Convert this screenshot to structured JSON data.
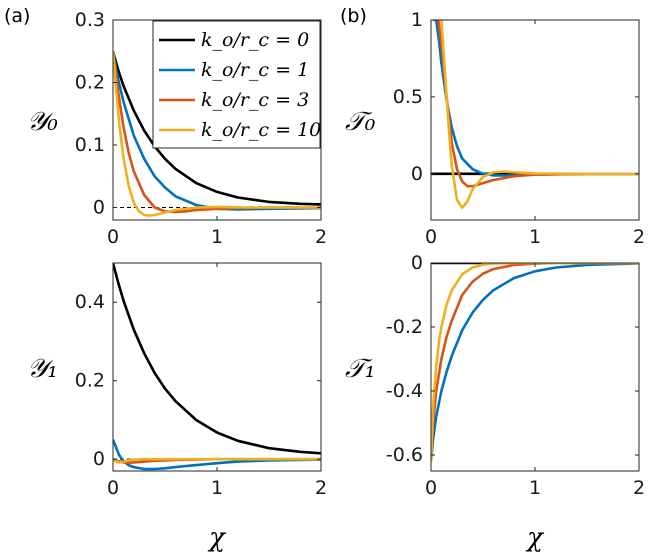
{
  "panel_labels": [
    "(a)",
    "(b)"
  ],
  "legend": {
    "entries": [
      {
        "label": "k_o/r_c = 0",
        "color": "#000000"
      },
      {
        "label": "k_o/r_c = 1",
        "color": "#0072BD"
      },
      {
        "label": "k_o/r_c = 3",
        "color": "#D95319"
      },
      {
        "label": "k_o/r_c = 10",
        "color": "#EDB120"
      }
    ]
  },
  "chart_data": [
    {
      "type": "line",
      "panel": "(a)",
      "ylabel": "𝒴₀",
      "xlabel": "",
      "xlim": [
        0,
        2
      ],
      "ylim": [
        -0.02,
        0.3
      ],
      "xticks": [
        "0",
        "1",
        "2"
      ],
      "yticks": [
        "0",
        "0.1",
        "0.2",
        "0.3"
      ],
      "reference_line": {
        "y": 0,
        "style": "dashed"
      },
      "series": [
        {
          "name": "k_o/r_c = 0",
          "color": "#000000",
          "x": [
            0,
            0.05,
            0.1,
            0.2,
            0.3,
            0.4,
            0.5,
            0.6,
            0.8,
            1.0,
            1.2,
            1.5,
            1.8,
            2.0
          ],
          "y": [
            0.25,
            0.22,
            0.195,
            0.155,
            0.123,
            0.098,
            0.078,
            0.062,
            0.039,
            0.025,
            0.016,
            0.009,
            0.006,
            0.005
          ]
        },
        {
          "name": "k_o/r_c = 1",
          "color": "#0072BD",
          "x": [
            0,
            0.05,
            0.1,
            0.2,
            0.3,
            0.4,
            0.5,
            0.6,
            0.8,
            1.0,
            1.2,
            1.5,
            2.0
          ],
          "y": [
            0.25,
            0.205,
            0.17,
            0.115,
            0.078,
            0.05,
            0.032,
            0.018,
            0.004,
            -0.002,
            -0.003,
            -0.002,
            -0.001
          ]
        },
        {
          "name": "k_o/r_c = 3",
          "color": "#D95319",
          "x": [
            0,
            0.05,
            0.1,
            0.15,
            0.2,
            0.3,
            0.4,
            0.5,
            0.6,
            0.7,
            0.8,
            1.0,
            1.2,
            1.5,
            2.0
          ],
          "y": [
            0.25,
            0.185,
            0.13,
            0.088,
            0.058,
            0.02,
            0.0,
            -0.006,
            -0.007,
            -0.006,
            -0.004,
            -0.002,
            -0.001,
            0.0,
            0.0
          ]
        },
        {
          "name": "k_o/r_c = 10",
          "color": "#EDB120",
          "x": [
            0,
            0.03,
            0.06,
            0.1,
            0.15,
            0.2,
            0.25,
            0.3,
            0.35,
            0.4,
            0.5,
            0.6,
            0.8,
            1.0,
            1.3,
            2.0
          ],
          "y": [
            0.25,
            0.19,
            0.135,
            0.08,
            0.035,
            0.008,
            -0.006,
            -0.012,
            -0.013,
            -0.012,
            -0.008,
            -0.004,
            0.0,
            0.001,
            0.0,
            0.0
          ]
        }
      ]
    },
    {
      "type": "line",
      "panel": "(b)",
      "ylabel": "𝒯₀",
      "xlabel": "",
      "xlim": [
        0,
        2
      ],
      "ylim": [
        -0.3,
        1
      ],
      "xticks": [
        "0",
        "1",
        "2"
      ],
      "yticks": [
        "0",
        "0.5",
        "1"
      ],
      "series": [
        {
          "name": "k_o/r_c = 0",
          "color": "#000000",
          "x": [
            0,
            2.0
          ],
          "y": [
            0,
            0
          ]
        },
        {
          "name": "k_o/r_c = 1",
          "color": "#0072BD",
          "x": [
            0.02,
            0.05,
            0.08,
            0.1,
            0.15,
            0.2,
            0.25,
            0.3,
            0.4,
            0.5,
            0.6,
            0.8,
            1.0,
            1.5,
            2.0
          ],
          "y": [
            1.0,
            1.0,
            0.85,
            0.72,
            0.48,
            0.3,
            0.18,
            0.1,
            0.03,
            0.0,
            -0.01,
            -0.01,
            -0.005,
            0.0,
            0.0
          ]
        },
        {
          "name": "k_o/r_c = 3",
          "color": "#D95319",
          "x": [
            0.07,
            0.1,
            0.15,
            0.2,
            0.25,
            0.3,
            0.35,
            0.4,
            0.5,
            0.6,
            0.8,
            1.0,
            1.5,
            2.0
          ],
          "y": [
            1.0,
            0.85,
            0.5,
            0.2,
            0.03,
            -0.05,
            -0.08,
            -0.08,
            -0.06,
            -0.04,
            -0.015,
            -0.005,
            0.0,
            0.0
          ]
        },
        {
          "name": "k_o/r_c = 10",
          "color": "#EDB120",
          "x": [
            0.1,
            0.12,
            0.15,
            0.18,
            0.2,
            0.25,
            0.3,
            0.35,
            0.4,
            0.5,
            0.6,
            0.7,
            0.8,
            1.0,
            1.5,
            2.0
          ],
          "y": [
            1.0,
            0.8,
            0.5,
            0.22,
            0.05,
            -0.17,
            -0.22,
            -0.18,
            -0.1,
            -0.02,
            0.01,
            0.015,
            0.01,
            0.003,
            0.0,
            0.0
          ]
        }
      ]
    },
    {
      "type": "line",
      "panel": "(a)",
      "ylabel": "𝒴₁",
      "xlabel": "χ",
      "xlim": [
        0,
        2
      ],
      "ylim": [
        -0.03,
        0.5
      ],
      "xticks": [
        "0",
        "1",
        "2"
      ],
      "yticks": [
        "0",
        "0.2",
        "0.4"
      ],
      "reference_line": {
        "y": 0,
        "style": "dashed"
      },
      "series": [
        {
          "name": "k_o/r_c = 0",
          "color": "#000000",
          "x": [
            0,
            0.05,
            0.1,
            0.2,
            0.3,
            0.4,
            0.5,
            0.6,
            0.8,
            1.0,
            1.2,
            1.5,
            1.8,
            2.0
          ],
          "y": [
            0.5,
            0.45,
            0.405,
            0.33,
            0.27,
            0.22,
            0.18,
            0.148,
            0.1,
            0.068,
            0.047,
            0.028,
            0.019,
            0.015
          ]
        },
        {
          "name": "k_o/r_c = 1",
          "color": "#0072BD",
          "x": [
            0,
            0.03,
            0.06,
            0.1,
            0.15,
            0.2,
            0.3,
            0.4,
            0.5,
            0.6,
            0.8,
            1.0,
            1.2,
            1.5,
            2.0
          ],
          "y": [
            0.05,
            0.03,
            0.01,
            -0.005,
            -0.015,
            -0.02,
            -0.025,
            -0.025,
            -0.023,
            -0.02,
            -0.015,
            -0.01,
            -0.006,
            -0.003,
            -0.001
          ]
        },
        {
          "name": "k_o/r_c = 3",
          "color": "#D95319",
          "x": [
            0,
            0.05,
            0.1,
            0.15,
            0.2,
            0.3,
            0.4,
            0.5,
            0.6,
            0.8,
            1.0,
            1.5,
            2.0
          ],
          "y": [
            0.0,
            -0.005,
            -0.008,
            -0.009,
            -0.008,
            -0.006,
            -0.004,
            -0.003,
            -0.002,
            -0.001,
            0.0,
            0.0,
            0.0
          ]
        },
        {
          "name": "k_o/r_c = 10",
          "color": "#EDB120",
          "x": [
            0,
            0.03,
            0.06,
            0.1,
            0.15,
            0.2,
            0.3,
            0.5,
            1.0,
            2.0
          ],
          "y": [
            0.0,
            -0.006,
            -0.008,
            -0.006,
            -0.003,
            -0.001,
            0.0,
            0.0,
            0.0,
            0.0
          ]
        }
      ]
    },
    {
      "type": "line",
      "panel": "(b)",
      "ylabel": "𝒯₁",
      "xlabel": "χ",
      "xlim": [
        0,
        2
      ],
      "ylim": [
        -0.65,
        0
      ],
      "xticks": [
        "0",
        "1",
        "2"
      ],
      "yticks": [
        "0",
        "-0.2",
        "-0.4",
        "-0.6"
      ],
      "series": [
        {
          "name": "k_o/r_c = 0",
          "color": "#000000",
          "x": [
            0,
            0.5
          ],
          "y": [
            0,
            0
          ]
        },
        {
          "name": "k_o/r_c = 1",
          "color": "#0072BD",
          "x": [
            0,
            0.02,
            0.05,
            0.1,
            0.15,
            0.2,
            0.3,
            0.4,
            0.5,
            0.6,
            0.8,
            1.0,
            1.2,
            1.5,
            2.0
          ],
          "y": [
            -0.62,
            -0.55,
            -0.48,
            -0.4,
            -0.34,
            -0.29,
            -0.21,
            -0.155,
            -0.115,
            -0.085,
            -0.047,
            -0.026,
            -0.014,
            -0.006,
            -0.001
          ]
        },
        {
          "name": "k_o/r_c = 3",
          "color": "#D95319",
          "x": [
            0,
            0.02,
            0.05,
            0.1,
            0.15,
            0.2,
            0.3,
            0.4,
            0.5,
            0.6,
            0.8,
            1.0,
            1.2,
            1.5,
            2.0
          ],
          "y": [
            -0.62,
            -0.5,
            -0.4,
            -0.3,
            -0.23,
            -0.18,
            -0.1,
            -0.058,
            -0.033,
            -0.019,
            -0.006,
            -0.002,
            0.0,
            0.0,
            0.0
          ]
        },
        {
          "name": "k_o/r_c = 10",
          "color": "#EDB120",
          "x": [
            0,
            0.02,
            0.05,
            0.08,
            0.1,
            0.15,
            0.2,
            0.3,
            0.4,
            0.5,
            0.6,
            0.8,
            1.0,
            2.0
          ],
          "y": [
            -0.62,
            -0.45,
            -0.32,
            -0.24,
            -0.2,
            -0.13,
            -0.085,
            -0.035,
            -0.014,
            -0.005,
            -0.002,
            0.0,
            0.0,
            0.0
          ]
        }
      ]
    }
  ]
}
